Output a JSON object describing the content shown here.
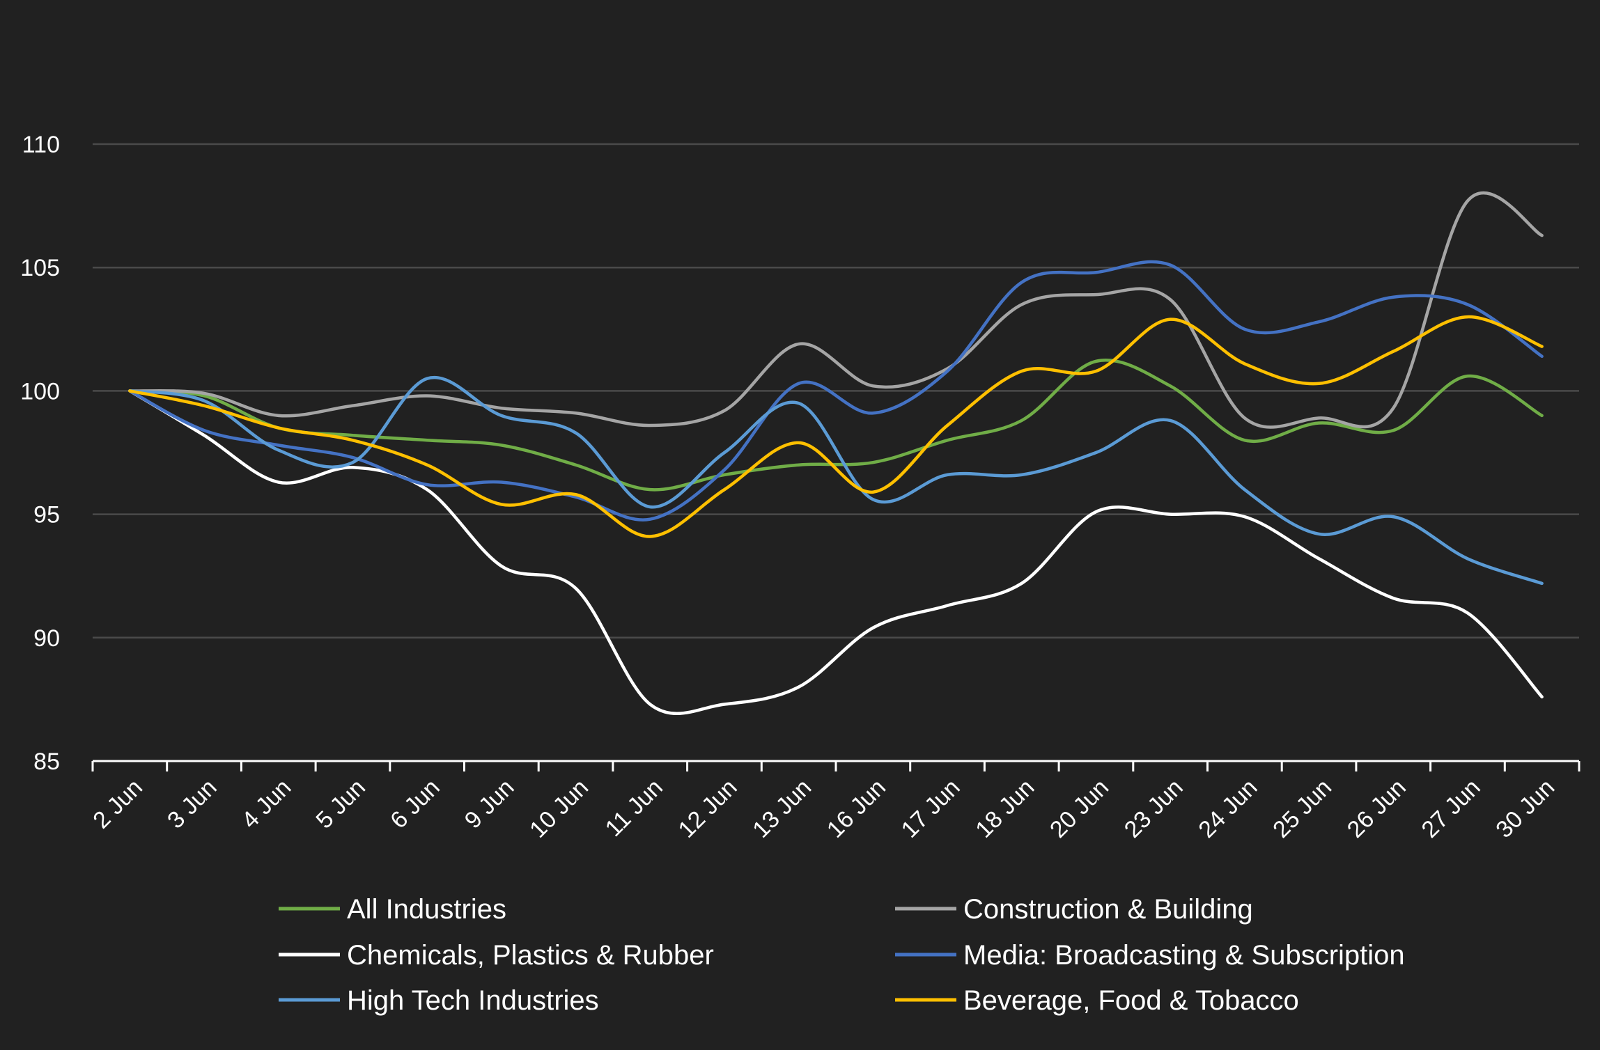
{
  "chart_data": {
    "type": "line",
    "title": "",
    "xlabel": "",
    "ylabel": "",
    "ylim": [
      85,
      110
    ],
    "yticks": [
      85,
      90,
      95,
      100,
      105,
      110
    ],
    "grid": "horizontal",
    "legend_position": "bottom",
    "categories": [
      "2 Jun",
      "3 Jun",
      "4 Jun",
      "5 Jun",
      "6 Jun",
      "9 Jun",
      "10 Jun",
      "11 Jun",
      "12 Jun",
      "13 Jun",
      "16 Jun",
      "17 Jun",
      "18 Jun",
      "20 Jun",
      "23 Jun",
      "24 Jun",
      "25 Jun",
      "26 Jun",
      "27 Jun",
      "30 Jun"
    ],
    "series": [
      {
        "name": "All Industries",
        "color": "#70ad47",
        "values": [
          100,
          99.8,
          98.5,
          98.2,
          98.0,
          97.8,
          97.0,
          96.0,
          96.6,
          97.0,
          97.1,
          98.0,
          98.8,
          101.2,
          100.2,
          98.0,
          98.7,
          98.4,
          100.6,
          99.0
        ]
      },
      {
        "name": "Construction & Building",
        "color": "#a5a5a5",
        "values": [
          100,
          99.9,
          99.0,
          99.4,
          99.8,
          99.3,
          99.1,
          98.6,
          99.2,
          101.9,
          100.2,
          100.9,
          103.5,
          103.9,
          103.7,
          98.9,
          98.9,
          99.3,
          107.7,
          106.3
        ]
      },
      {
        "name": "Chemicals, Plastics & Rubber",
        "color": "#ffffff",
        "values": [
          100,
          98.2,
          96.3,
          96.9,
          96.0,
          92.9,
          92.0,
          87.3,
          87.3,
          88.0,
          90.4,
          91.3,
          92.2,
          95.1,
          95.0,
          94.9,
          93.2,
          91.6,
          91.0,
          87.6
        ]
      },
      {
        "name": "Media: Broadcasting & Subscription",
        "color": "#4472c4",
        "values": [
          100,
          98.4,
          97.8,
          97.3,
          96.2,
          96.3,
          95.7,
          94.8,
          96.8,
          100.3,
          99.1,
          100.8,
          104.4,
          104.8,
          105.1,
          102.5,
          102.8,
          103.8,
          103.5,
          101.4
        ]
      },
      {
        "name": "High Tech Industries",
        "color": "#5b9bd5",
        "values": [
          100,
          99.6,
          97.6,
          97.1,
          100.5,
          99.0,
          98.3,
          95.3,
          97.5,
          99.5,
          95.6,
          96.6,
          96.6,
          97.5,
          98.8,
          96.0,
          94.2,
          94.9,
          93.2,
          92.2
        ]
      },
      {
        "name": "Beverage, Food & Tobacco",
        "color": "#ffc000",
        "values": [
          100,
          99.4,
          98.5,
          98.0,
          97.0,
          95.4,
          95.8,
          94.1,
          96.0,
          97.9,
          95.9,
          98.6,
          100.8,
          100.8,
          102.9,
          101.1,
          100.3,
          101.6,
          103.0,
          101.8
        ]
      }
    ]
  }
}
